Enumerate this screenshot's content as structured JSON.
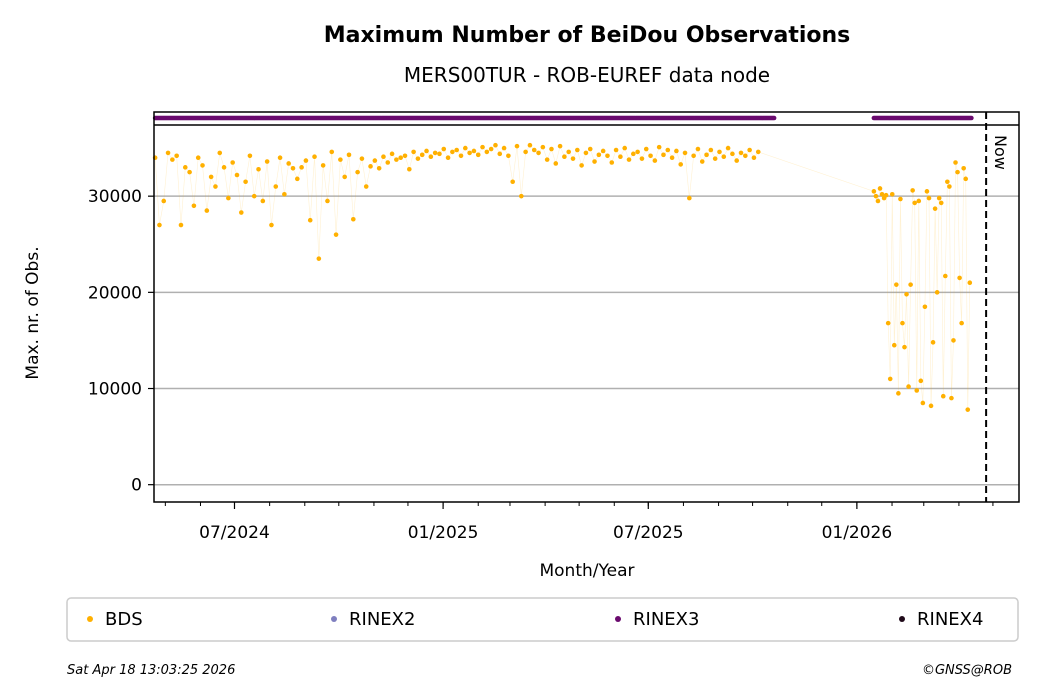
{
  "chart_data": {
    "type": "scatter",
    "title": "Maximum Number of BeiDou Observations",
    "subtitle": "MERS00TUR - ROB-EUREF data node",
    "xlabel": "Month/Year",
    "ylabel": "Max. nr. of Obs.",
    "ylim": [
      -1800,
      37400
    ],
    "xlim": [
      "2024-04-21",
      "2026-05-24"
    ],
    "yticks": [
      0,
      10000,
      20000,
      30000
    ],
    "xticks": [
      {
        "date": "2024-07-01",
        "label": "07/2024"
      },
      {
        "date": "2025-01-01",
        "label": "01/2025"
      },
      {
        "date": "2025-07-01",
        "label": "07/2025"
      },
      {
        "date": "2026-01-01",
        "label": "01/2026"
      }
    ],
    "grid": "horizontal",
    "now": {
      "date": "2026-04-25",
      "label": "Now"
    },
    "series": [
      {
        "name": "BDS",
        "color": "#ffb000",
        "segments": [
          {
            "start": "2024-04-22",
            "step_days": 3.8,
            "values": [
              34000,
              27000,
              29500,
              34500,
              33800,
              34200,
              27000,
              33000,
              32500,
              29000,
              34000,
              33200,
              28500,
              32000,
              31000,
              34500,
              33000,
              29800,
              33500,
              32200,
              28300,
              31500,
              34200,
              30000,
              32800,
              29500,
              33600,
              27000,
              31000,
              34000,
              30200,
              33400,
              32900,
              31800,
              33000,
              33700,
              27500,
              34100,
              23500,
              33200,
              29500,
              34600,
              26000,
              33800,
              32000,
              34300,
              27600,
              32500,
              33900,
              31000,
              33100,
              33700,
              32900,
              34100,
              33500,
              34400,
              33800,
              34000,
              34200,
              32800,
              34600,
              33900,
              34300,
              34700,
              34100,
              34500,
              34400,
              34900,
              34000,
              34600,
              34800,
              34200,
              35000,
              34500,
              34700,
              34300,
              35100,
              34600,
              34900,
              35300,
              34400,
              35000,
              34200,
              31500,
              35200,
              30000,
              34600,
              35300,
              34800,
              34500,
              35100,
              33800,
              34900,
              33400,
              35200,
              34100,
              34600,
              33900,
              34800,
              33200,
              34500,
              34900,
              33600,
              34300,
              34700,
              34200,
              33500,
              34800,
              34100,
              35000,
              33800,
              34400,
              34600,
              33900,
              34900,
              34200,
              33700,
              35100,
              34300,
              34800,
              34000,
              34700,
              33300,
              34500,
              29800,
              34200,
              34900,
              33600,
              34300,
              34800,
              33900,
              34600,
              34100,
              35000,
              34400,
              33700,
              34500,
              34200,
              34800,
              34000,
              34600
            ]
          },
          {
            "start": "2026-01-16",
            "step_days": 1.8,
            "values": [
              30500,
              30000,
              29500,
              30800,
              30200,
              29800,
              30100,
              16800,
              11000,
              30200,
              14500,
              20800,
              9500,
              29700,
              16800,
              14300,
              19800,
              10200,
              20800,
              30600,
              29300,
              9800,
              29500,
              10800,
              8500,
              18500,
              30500,
              29800,
              8200,
              14800,
              28700,
              20000,
              29800,
              29300,
              9200,
              21700,
              31500,
              31000,
              9000,
              15000,
              33500,
              32500,
              21500,
              16800,
              32900,
              31800,
              7800,
              21000
            ]
          }
        ]
      },
      {
        "name": "RINEX2",
        "color": "#7f7fbf",
        "segments": []
      },
      {
        "name": "RINEX3",
        "color": "#6a0a6e",
        "segments": [
          {
            "start": "2024-04-22",
            "end": "2025-10-20"
          },
          {
            "start": "2026-01-16",
            "end": "2026-04-12"
          }
        ]
      },
      {
        "name": "RINEX4",
        "color": "#200a1a",
        "segments": []
      }
    ],
    "legend": {
      "placement": "bottom",
      "entries": [
        "BDS",
        "RINEX2",
        "RINEX3",
        "RINEX4"
      ]
    }
  },
  "footer": {
    "timestamp": "Sat Apr 18 13:03:25 2026",
    "copyright": "©GNSS@ROB"
  }
}
